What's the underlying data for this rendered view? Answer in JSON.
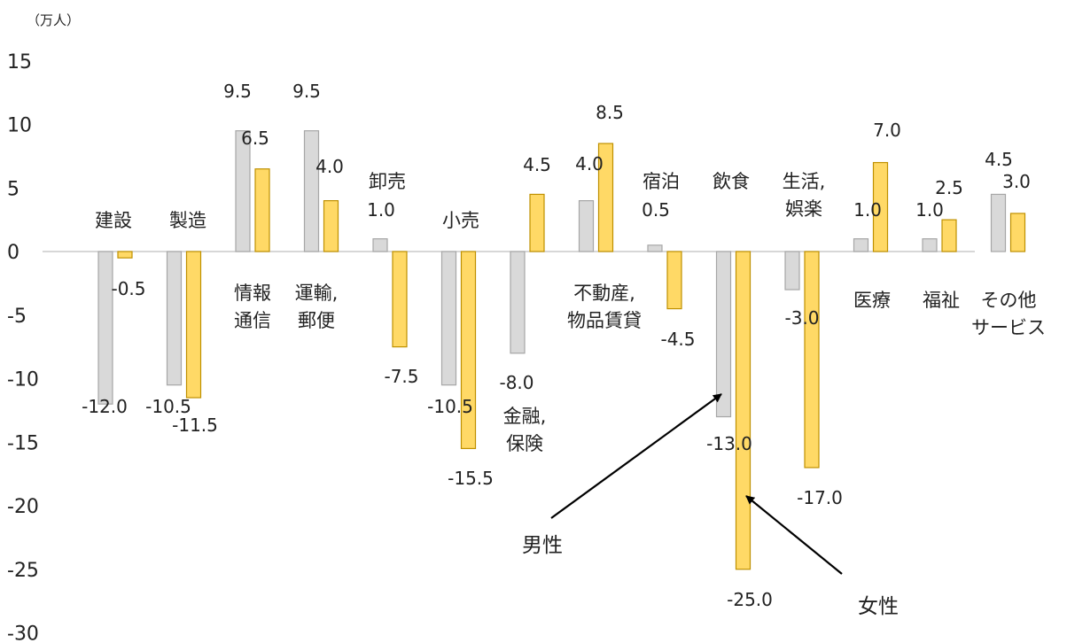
{
  "chart_data": {
    "type": "bar",
    "unit_label": "（万人）",
    "ylim": [
      -30,
      15
    ],
    "yticks": [
      15,
      10,
      5,
      0,
      -5,
      -10,
      -15,
      -20,
      -25,
      -30
    ],
    "grid": false,
    "legend": "none",
    "categories": [
      [
        "建設"
      ],
      [
        "製造"
      ],
      [
        "情報",
        "通信"
      ],
      [
        "運輸,",
        "郵便"
      ],
      [
        "卸売"
      ],
      [
        "小売"
      ],
      [
        "金融,",
        "保険"
      ],
      [
        "不動産,",
        "物品賃貸"
      ],
      [
        "宿泊"
      ],
      [
        "飲食"
      ],
      [
        "生活,",
        "娯楽"
      ],
      [
        "医療"
      ],
      [
        "福祉"
      ],
      [
        "その他",
        "サービス"
      ]
    ],
    "series": [
      {
        "name": "男性",
        "color": "#d9d9d9",
        "stroke": "#a6a6a6",
        "values": [
          -12.0,
          -10.5,
          9.5,
          9.5,
          1.0,
          -10.5,
          -8.0,
          4.0,
          0.5,
          -13.0,
          -3.0,
          1.0,
          1.0,
          4.5
        ]
      },
      {
        "name": "女性",
        "color": "#ffd966",
        "stroke": "#bf9000",
        "values": [
          -0.5,
          -11.5,
          6.5,
          4.0,
          -7.5,
          -15.5,
          4.5,
          8.5,
          -4.5,
          -25.0,
          -17.0,
          7.0,
          2.5,
          3.0
        ]
      }
    ],
    "data_labels": {
      "男性": [
        "-12.0",
        "-10.5",
        "9.5",
        "9.5",
        "1.0",
        "-10.5",
        "-8.0",
        "4.0",
        "0.5",
        "-13.0",
        "-3.0",
        "1.0",
        "1.0",
        "4.5"
      ],
      "女性": [
        "-0.5",
        "-11.5",
        "6.5",
        "4.0",
        "-7.5",
        "-15.5",
        "4.5",
        "8.5",
        "-4.5",
        "-25.0",
        "-17.0",
        "7.0",
        "2.5",
        "3.0"
      ]
    },
    "annotations": [
      "男性",
      "女性"
    ]
  }
}
